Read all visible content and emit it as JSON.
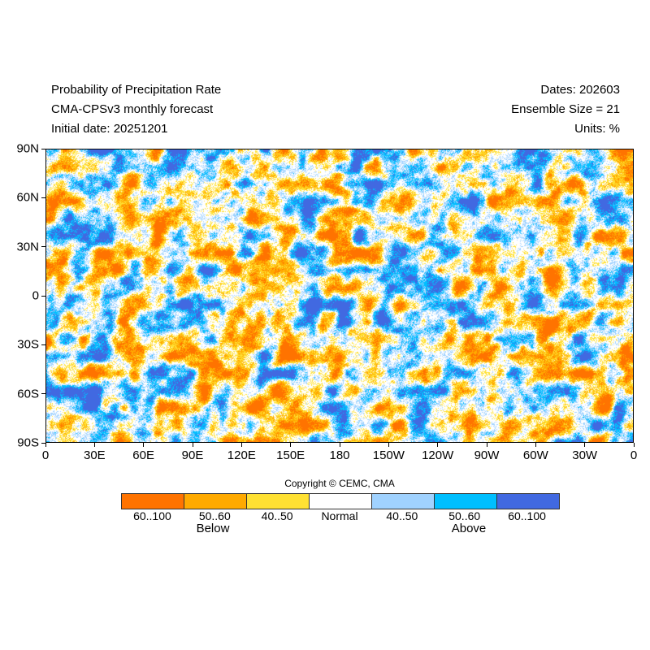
{
  "header": {
    "title": "Probability of Precipitation Rate",
    "model": "CMA-CPSv3 monthly forecast",
    "initial_date": "Initial date: 20251201",
    "dates": "Dates: 202603",
    "ensemble": "Ensemble Size = 21",
    "units": "Units: %"
  },
  "axes": {
    "x_ticks": [
      "0",
      "30E",
      "60E",
      "90E",
      "120E",
      "150E",
      "180",
      "150W",
      "120W",
      "90W",
      "60W",
      "30W",
      "0"
    ],
    "y_ticks": [
      "90N",
      "60N",
      "30N",
      "0",
      "30S",
      "60S",
      "90S"
    ]
  },
  "copyright": "Copyright © CEMC, CMA",
  "legend": {
    "bins": [
      {
        "label": "60..100",
        "color": "#ff7300"
      },
      {
        "label": "50..60",
        "color": "#ffaa00"
      },
      {
        "label": "40..50",
        "color": "#ffe133"
      },
      {
        "label": "Normal",
        "color": "#ffffff"
      },
      {
        "label": "40..50",
        "color": "#a0d2ff"
      },
      {
        "label": "50..60",
        "color": "#00bfff"
      },
      {
        "label": "60..100",
        "color": "#4169e1"
      }
    ],
    "below_label": "Below",
    "above_label": "Above"
  }
}
